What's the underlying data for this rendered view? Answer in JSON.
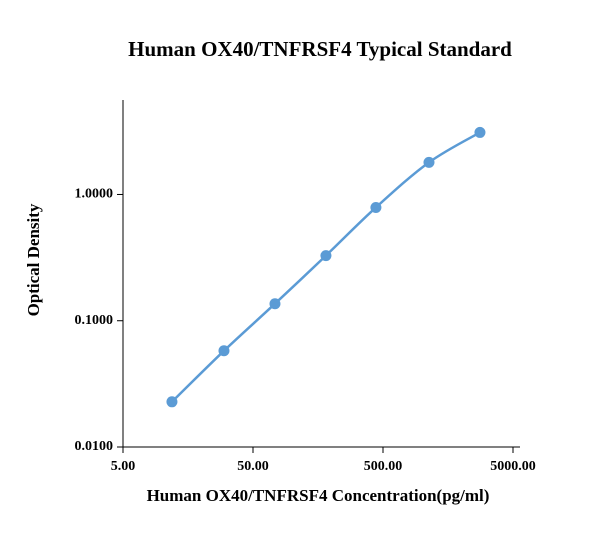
{
  "chart_data": {
    "type": "line",
    "title": "Human OX40/TNFRSF4 Typical Standard",
    "x_label": "Human OX40/TNFRSF4 Concentration(pg/ml)",
    "y_label": "Optical Density",
    "x_scale": "log",
    "y_scale": "log",
    "xlim": [
      5,
      5000
    ],
    "xticks": [
      {
        "value": 5,
        "label": "5.00"
      },
      {
        "value": 50,
        "label": "50.00"
      },
      {
        "value": 500,
        "label": "500.00"
      },
      {
        "value": 5000,
        "label": "5000.00"
      }
    ],
    "ylim": [
      0.01,
      5.6
    ],
    "yticks": [
      {
        "value": 0.01,
        "label": "0.0100"
      },
      {
        "value": 0.1,
        "label": "0.1000"
      },
      {
        "value": 1,
        "label": "1.0000"
      }
    ],
    "x": [
      11.9,
      29.9,
      73.8,
      182,
      441,
      1129,
      2785
    ],
    "series": [
      {
        "name": "OD",
        "color": "#5b9bd5",
        "values": [
          0.0228,
          0.0578,
          0.1364,
          0.328,
          0.789,
          1.795,
          3.1
        ]
      }
    ]
  }
}
